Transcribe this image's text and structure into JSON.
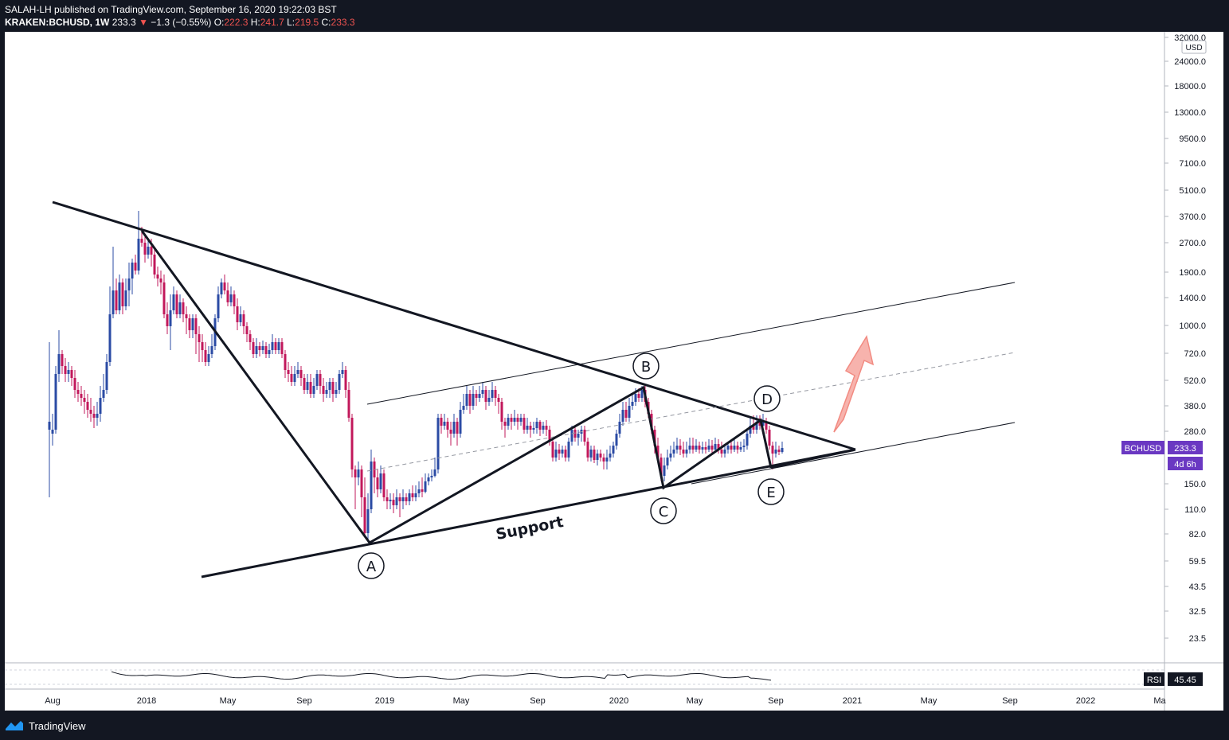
{
  "header": {
    "publisher": "SALAH-LH published on TradingView.com, September 16, 2020 19:22:03 BST",
    "symbol": "KRAKEN:BCHUSD, 1W",
    "last": "233.3",
    "change_arrow": "▼",
    "change": "−1.3 (−0.55%)",
    "o_label": "O:",
    "o_val": "222.3",
    "h_label": "H:",
    "h_val": "241.7",
    "l_label": "L:",
    "l_val": "219.5",
    "c_label": "C:",
    "c_val": "233.3"
  },
  "footer": {
    "brand": "TradingView"
  },
  "colors": {
    "up": "#2b4ba4",
    "down": "#c2185b",
    "background": "#131722",
    "label_bg": "#6a38c2",
    "arrow": "#f28b82"
  },
  "chart_data": {
    "type": "candlestick",
    "symbol": "BCHUSD",
    "interval": "1W",
    "price_scale": "log",
    "currency": "USD",
    "current_price": "233.3",
    "countdown": "4d 6h",
    "y_ticks": [
      "32000.0",
      "24000.0",
      "18000.0",
      "13000.0",
      "9500.0",
      "7100.0",
      "5100.0",
      "3700.0",
      "2700.0",
      "1900.0",
      "1400.0",
      "1000.0",
      "720.0",
      "520.0",
      "380.0",
      "280.0",
      "150.0",
      "110.0",
      "82.0",
      "59.5",
      "43.5",
      "32.5",
      "23.5"
    ],
    "x_ticks": [
      "Aug",
      "2018",
      "May",
      "Sep",
      "2019",
      "May",
      "Sep",
      "2020",
      "May",
      "Sep",
      "2021",
      "May",
      "Sep",
      "2022",
      "Ma"
    ],
    "annotations": {
      "wave_labels": [
        "A",
        "B",
        "C",
        "D",
        "E"
      ],
      "support_label": "Support"
    },
    "rsi": {
      "label": "RSI",
      "value": "45.45"
    }
  }
}
